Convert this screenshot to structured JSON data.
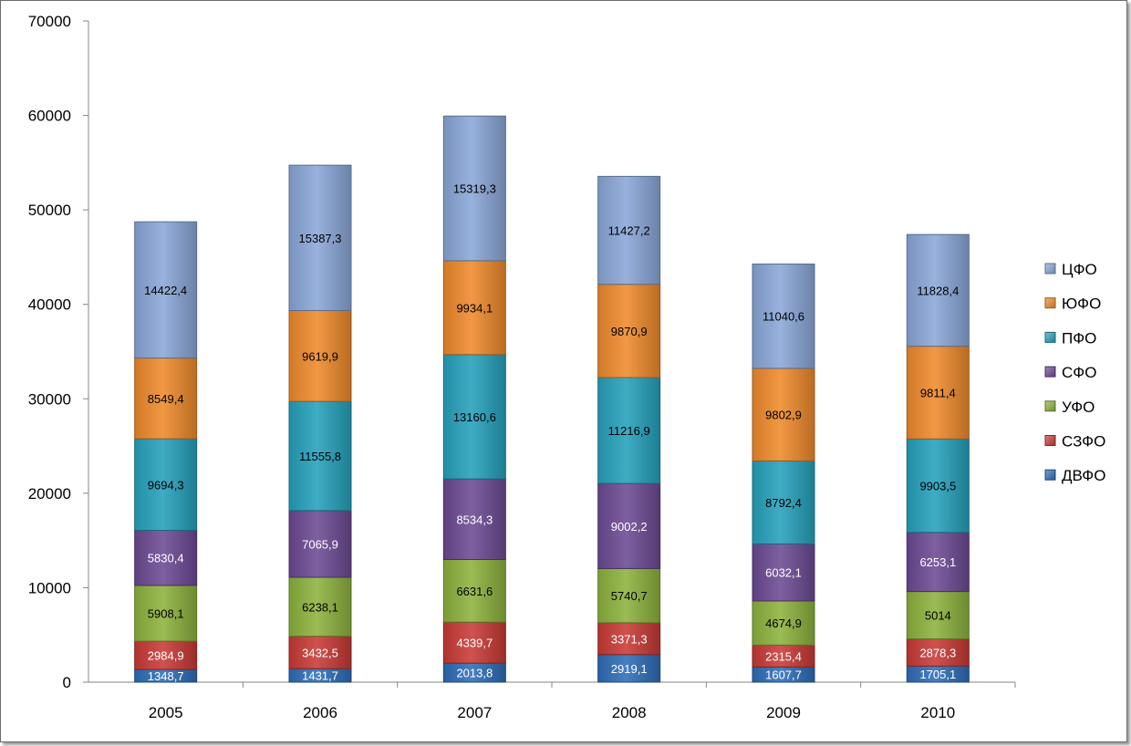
{
  "chart_data": {
    "type": "bar",
    "stacked": true,
    "categories": [
      "2005",
      "2006",
      "2007",
      "2008",
      "2009",
      "2010"
    ],
    "ylim": [
      0,
      70000
    ],
    "yticks": [
      "0",
      "10000",
      "20000",
      "30000",
      "40000",
      "50000",
      "60000",
      "70000"
    ],
    "grid": false,
    "legend_position": "right",
    "series": [
      {
        "name": "ДВФО",
        "color": "#2E6DB8",
        "values": [
          1348.7,
          1431.7,
          2013.8,
          2919.1,
          1607.7,
          1705.1
        ],
        "labels": [
          "1348,7",
          "1431,7",
          "2013,8",
          "2919,1",
          "1607,7",
          "1705,1"
        ]
      },
      {
        "name": "СЗФО",
        "color": "#C83A36",
        "values": [
          2984.9,
          3432.5,
          4339.7,
          3371.3,
          2315.4,
          2878.3
        ],
        "labels": [
          "2984,9",
          "3432,5",
          "4339,7",
          "3371,3",
          "2315,4",
          "2878,3"
        ]
      },
      {
        "name": "УФО",
        "color": "#8DB23D",
        "values": [
          5908.1,
          6238.1,
          6631.6,
          5740.7,
          4674.9,
          5014
        ],
        "labels": [
          "5908,1",
          "6238,1",
          "6631,6",
          "5740,7",
          "4674,9",
          "5014"
        ]
      },
      {
        "name": "СФО",
        "color": "#6C4A94",
        "values": [
          5830.4,
          7065.9,
          8534.3,
          9002.2,
          6032.1,
          6253.1
        ],
        "labels": [
          "5830,4",
          "7065,9",
          "8534,3",
          "9002,2",
          "6032,1",
          "6253,1"
        ]
      },
      {
        "name": "ПФО",
        "color": "#25A1BC",
        "values": [
          9694.3,
          11555.8,
          13160.6,
          11216.9,
          8792.4,
          9903.5
        ],
        "labels": [
          "9694,3",
          "11555,8",
          "13160,6",
          "11216,9",
          "8792,4",
          "9903,5"
        ]
      },
      {
        "name": "ЮФО",
        "color": "#EF8A2C",
        "values": [
          8549.4,
          9619.9,
          9934.1,
          9870.9,
          9802.9,
          9811.4
        ],
        "labels": [
          "8549,4",
          "9619,9",
          "9934,1",
          "9870,9",
          "9802,9",
          "9811,4"
        ]
      },
      {
        "name": "ЦФО",
        "color": "#8AA7D8",
        "values": [
          14422.4,
          15387.3,
          15319.3,
          11427.2,
          11040.6,
          11828.4
        ],
        "labels": [
          "14422,4",
          "15387,3",
          "15319,3",
          "11427,2",
          "11040,6",
          "11828,4"
        ]
      }
    ]
  }
}
